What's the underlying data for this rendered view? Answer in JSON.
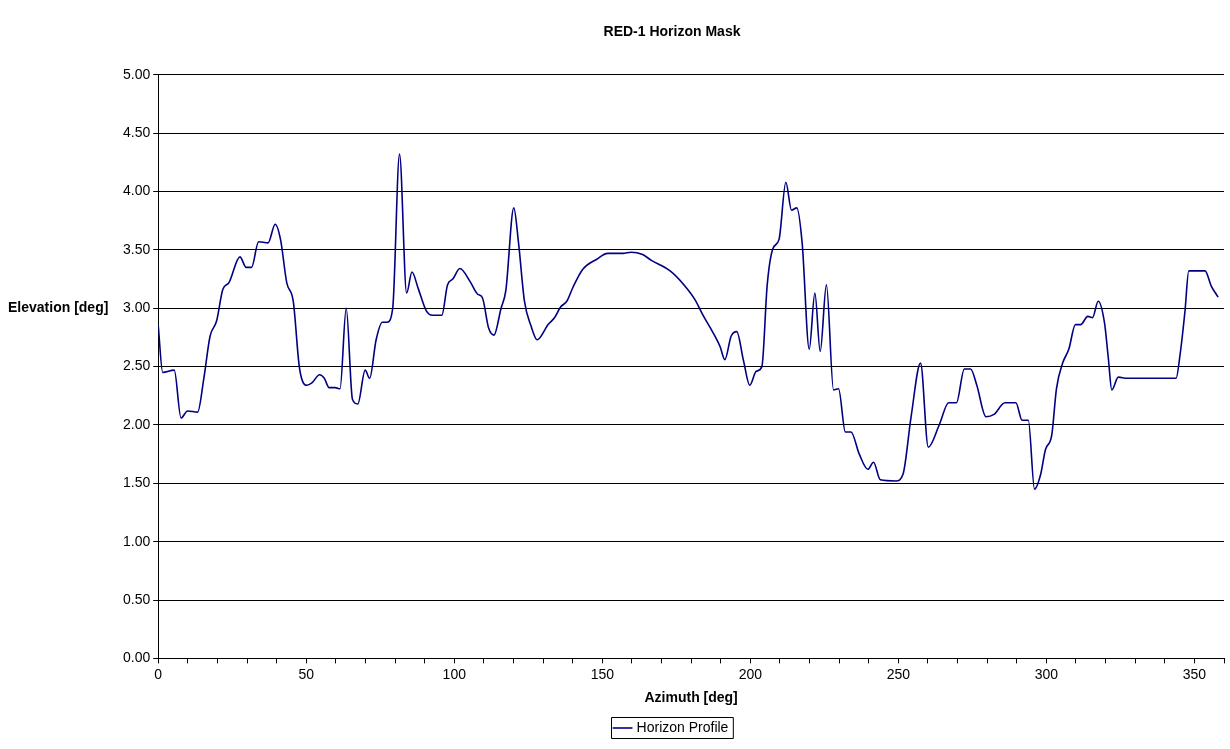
{
  "chart_data": {
    "type": "line",
    "title": "RED-1 Horizon Mask",
    "xlabel": "Azimuth [deg]",
    "ylabel": "Elevation [deg]",
    "xlim": [
      0,
      360
    ],
    "xticks": [
      0,
      {
        "value": 10,
        "label": null
      },
      {
        "value": 20,
        "label": null
      },
      {
        "value": 30,
        "label": null
      },
      {
        "value": 40,
        "label": null
      },
      50,
      {
        "value": 60,
        "label": null
      },
      {
        "value": 70,
        "label": null
      },
      {
        "value": 80,
        "label": null
      },
      {
        "value": 90,
        "label": null
      },
      100,
      {
        "value": 110,
        "label": null
      },
      {
        "value": 120,
        "label": null
      },
      {
        "value": 130,
        "label": null
      },
      {
        "value": 140,
        "label": null
      },
      150,
      {
        "value": 160,
        "label": null
      },
      {
        "value": 170,
        "label": null
      },
      {
        "value": 180,
        "label": null
      },
      {
        "value": 190,
        "label": null
      },
      200,
      {
        "value": 210,
        "label": null
      },
      {
        "value": 220,
        "label": null
      },
      {
        "value": 230,
        "label": null
      },
      {
        "value": 240,
        "label": null
      },
      250,
      {
        "value": 260,
        "label": null
      },
      {
        "value": 270,
        "label": null
      },
      {
        "value": 280,
        "label": null
      },
      {
        "value": 290,
        "label": null
      },
      300,
      {
        "value": 310,
        "label": null
      },
      {
        "value": 320,
        "label": null
      },
      {
        "value": 330,
        "label": null
      },
      {
        "value": 340,
        "label": null
      },
      350,
      {
        "value": 360,
        "label": null
      }
    ],
    "ylim": [
      0,
      5
    ],
    "yticks": [
      {
        "value": 0,
        "label": "0.00"
      },
      {
        "value": 0.5,
        "label": "0.50"
      },
      {
        "value": 1,
        "label": "1.00"
      },
      {
        "value": 1.5,
        "label": "1.50"
      },
      {
        "value": 2,
        "label": "2.00"
      },
      {
        "value": 2.5,
        "label": "2.50"
      },
      {
        "value": 3,
        "label": "3.00"
      },
      {
        "value": 3.5,
        "label": "3.50"
      },
      {
        "value": 4,
        "label": "4.00"
      },
      {
        "value": 4.5,
        "label": "4.50"
      },
      {
        "value": 5,
        "label": "5.00"
      }
    ],
    "grid": "y",
    "legend": "bottom",
    "marker": "none",
    "line_style": "solid",
    "series": [
      {
        "name": "Horizon Profile",
        "color": "#000080",
        "x": [
          0,
          1.5,
          5.4,
          7.7,
          9.9,
          13.3,
          15.4,
          17.5,
          19.7,
          21.8,
          23.9,
          27.6,
          29.7,
          31.5,
          33.9,
          37.1,
          39.5,
          41.3,
          43.4,
          45.6,
          47.7,
          50.1,
          51.9,
          54.5,
          56.1,
          57.7,
          59.8,
          61.4,
          63.5,
          65.6,
          67.4,
          69.9,
          71.4,
          73.6,
          75.7,
          77.3,
          79.2,
          81.5,
          83.9,
          85.7,
          87.8,
          90.5,
          92.6,
          95.8,
          97.7,
          99.5,
          101.9,
          105.3,
          107.9,
          109.5,
          111.6,
          113.4,
          115.8,
          117.4,
          120.1,
          121.7,
          123.7,
          125.9,
          128,
          131.7,
          133.9,
          135.9,
          138,
          140.1,
          143.3,
          148.1,
          151.8,
          157,
          159.7,
          163.6,
          166.6,
          172.9,
          177.6,
          181.4,
          184,
          187.2,
          189.8,
          191.4,
          193.5,
          195.4,
          197.7,
          199.8,
          202,
          203.9,
          205.7,
          207.6,
          209.7,
          212,
          213.9,
          215.7,
          217.5,
          219.9,
          221.8,
          223.6,
          225.7,
          228.1,
          229.8,
          232.1,
          234,
          236.8,
          239.7,
          241.6,
          243.9,
          249.2,
          251.6,
          254.3,
          257.5,
          260.1,
          263.8,
          267,
          269.6,
          272.3,
          274.4,
          276.5,
          279.6,
          282.3,
          286,
          289.7,
          291.8,
          293.9,
          296,
          298.1,
          299.7,
          301.8,
          303.4,
          305.5,
          307.6,
          309.8,
          311.6,
          314,
          315.6,
          317.5,
          319.6,
          320.9,
          322.1,
          324.3,
          327.2,
          342,
          343.8,
          345.2,
          346.8,
          348.1,
          349.9,
          353.6,
          355.7,
          357.9
        ],
        "values": [
          2.85,
          2.45,
          2.47,
          2.06,
          2.12,
          2.11,
          2.4,
          2.76,
          2.89,
          3.16,
          3.22,
          3.44,
          3.35,
          3.35,
          3.57,
          3.56,
          3.72,
          3.59,
          3.22,
          3.06,
          2.49,
          2.34,
          2.36,
          2.43,
          2.4,
          2.32,
          2.32,
          2.31,
          3.0,
          2.22,
          2.18,
          2.47,
          2.4,
          2.73,
          2.88,
          2.88,
          3.0,
          4.32,
          3.13,
          3.31,
          3.17,
          2.98,
          2.94,
          2.94,
          3.2,
          3.25,
          3.34,
          3.23,
          3.12,
          3.09,
          2.83,
          2.77,
          3.0,
          3.15,
          3.86,
          3.56,
          3.06,
          2.85,
          2.73,
          2.86,
          2.92,
          3.01,
          3.06,
          3.18,
          3.33,
          3.42,
          3.47,
          3.47,
          3.48,
          3.46,
          3.41,
          3.32,
          3.2,
          3.07,
          2.94,
          2.8,
          2.67,
          2.56,
          2.76,
          2.8,
          2.55,
          2.34,
          2.46,
          2.5,
          3.2,
          3.51,
          3.59,
          4.08,
          3.84,
          3.86,
          3.56,
          2.65,
          3.13,
          2.63,
          3.2,
          2.3,
          2.31,
          1.94,
          1.94,
          1.75,
          1.62,
          1.68,
          1.53,
          1.52,
          1.58,
          2.07,
          2.53,
          1.81,
          2.0,
          2.19,
          2.19,
          2.48,
          2.48,
          2.34,
          2.07,
          2.09,
          2.19,
          2.19,
          2.04,
          2.04,
          1.45,
          1.58,
          1.79,
          1.91,
          2.31,
          2.53,
          2.65,
          2.86,
          2.86,
          2.93,
          2.92,
          3.06,
          2.88,
          2.58,
          2.3,
          2.41,
          2.4,
          2.4,
          2.4,
          2.61,
          2.97,
          3.32,
          3.32,
          3.32,
          3.19,
          3.1
        ]
      }
    ]
  }
}
